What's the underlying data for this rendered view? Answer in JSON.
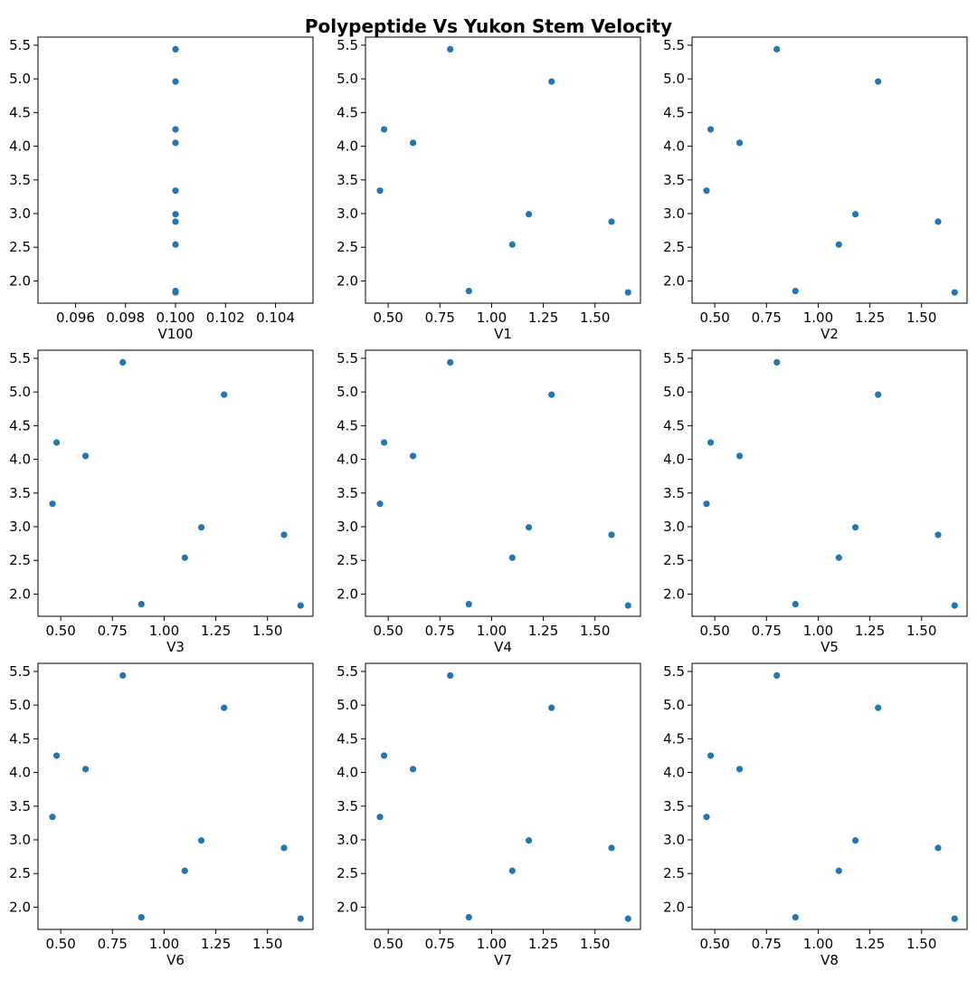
{
  "title": "Polypeptide Vs Yukon Stem Velocity",
  "colors": {
    "marker": "#1f77b4",
    "axes": "#000000",
    "background": "#ffffff"
  },
  "chart_data": [
    {
      "type": "scatter",
      "xlabel": "V100",
      "xlim": [
        0.0945,
        0.1055
      ],
      "ylim": [
        1.67,
        5.62
      ],
      "xticks": [
        0.096,
        0.098,
        0.1,
        0.102,
        0.104
      ],
      "xtick_labels": [
        "0.096",
        "0.098",
        "0.100",
        "0.102",
        "0.104"
      ],
      "yticks": [
        2.0,
        2.5,
        3.0,
        3.5,
        4.0,
        4.5,
        5.0,
        5.5
      ],
      "ytick_labels": [
        "2.0",
        "2.5",
        "3.0",
        "3.5",
        "4.0",
        "4.5",
        "5.0",
        "5.5"
      ],
      "grid": false,
      "x": [
        0.1,
        0.1,
        0.1,
        0.1,
        0.1,
        0.1,
        0.1,
        0.1,
        0.1,
        0.1
      ],
      "y": [
        5.44,
        4.96,
        4.25,
        4.05,
        3.34,
        2.99,
        2.88,
        2.54,
        1.85,
        1.83
      ]
    },
    {
      "type": "scatter",
      "xlabel": "V1",
      "xlim": [
        0.39,
        1.72
      ],
      "ylim": [
        1.67,
        5.62
      ],
      "xticks": [
        0.5,
        0.75,
        1.0,
        1.25,
        1.5
      ],
      "xtick_labels": [
        "0.50",
        "0.75",
        "1.00",
        "1.25",
        "1.50"
      ],
      "yticks": [
        2.0,
        2.5,
        3.0,
        3.5,
        4.0,
        4.5,
        5.0,
        5.5
      ],
      "ytick_labels": [
        "2.0",
        "2.5",
        "3.0",
        "3.5",
        "4.0",
        "4.5",
        "5.0",
        "5.5"
      ],
      "grid": false,
      "x": [
        0.8,
        1.29,
        0.48,
        0.62,
        0.46,
        1.18,
        1.58,
        1.1,
        0.89,
        1.66
      ],
      "y": [
        5.44,
        4.96,
        4.25,
        4.05,
        3.34,
        2.99,
        2.88,
        2.54,
        1.85,
        1.83
      ]
    },
    {
      "type": "scatter",
      "xlabel": "V2",
      "xlim": [
        0.39,
        1.72
      ],
      "ylim": [
        1.67,
        5.62
      ],
      "xticks": [
        0.5,
        0.75,
        1.0,
        1.25,
        1.5
      ],
      "xtick_labels": [
        "0.50",
        "0.75",
        "1.00",
        "1.25",
        "1.50"
      ],
      "yticks": [
        2.0,
        2.5,
        3.0,
        3.5,
        4.0,
        4.5,
        5.0,
        5.5
      ],
      "ytick_labels": [
        "2.0",
        "2.5",
        "3.0",
        "3.5",
        "4.0",
        "4.5",
        "5.0",
        "5.5"
      ],
      "grid": false,
      "x": [
        0.8,
        1.29,
        0.48,
        0.62,
        0.46,
        1.18,
        1.58,
        1.1,
        0.89,
        1.66
      ],
      "y": [
        5.44,
        4.96,
        4.25,
        4.05,
        3.34,
        2.99,
        2.88,
        2.54,
        1.85,
        1.83
      ]
    },
    {
      "type": "scatter",
      "xlabel": "V3",
      "xlim": [
        0.39,
        1.72
      ],
      "ylim": [
        1.67,
        5.62
      ],
      "xticks": [
        0.5,
        0.75,
        1.0,
        1.25,
        1.5
      ],
      "xtick_labels": [
        "0.50",
        "0.75",
        "1.00",
        "1.25",
        "1.50"
      ],
      "yticks": [
        2.0,
        2.5,
        3.0,
        3.5,
        4.0,
        4.5,
        5.0,
        5.5
      ],
      "ytick_labels": [
        "2.0",
        "2.5",
        "3.0",
        "3.5",
        "4.0",
        "4.5",
        "5.0",
        "5.5"
      ],
      "grid": false,
      "x": [
        0.8,
        1.29,
        0.48,
        0.62,
        0.46,
        1.18,
        1.58,
        1.1,
        0.89,
        1.66
      ],
      "y": [
        5.44,
        4.96,
        4.25,
        4.05,
        3.34,
        2.99,
        2.88,
        2.54,
        1.85,
        1.83
      ]
    },
    {
      "type": "scatter",
      "xlabel": "V4",
      "xlim": [
        0.39,
        1.72
      ],
      "ylim": [
        1.67,
        5.62
      ],
      "xticks": [
        0.5,
        0.75,
        1.0,
        1.25,
        1.5
      ],
      "xtick_labels": [
        "0.50",
        "0.75",
        "1.00",
        "1.25",
        "1.50"
      ],
      "yticks": [
        2.0,
        2.5,
        3.0,
        3.5,
        4.0,
        4.5,
        5.0,
        5.5
      ],
      "ytick_labels": [
        "2.0",
        "2.5",
        "3.0",
        "3.5",
        "4.0",
        "4.5",
        "5.0",
        "5.5"
      ],
      "grid": false,
      "x": [
        0.8,
        1.29,
        0.48,
        0.62,
        0.46,
        1.18,
        1.58,
        1.1,
        0.89,
        1.66
      ],
      "y": [
        5.44,
        4.96,
        4.25,
        4.05,
        3.34,
        2.99,
        2.88,
        2.54,
        1.85,
        1.83
      ]
    },
    {
      "type": "scatter",
      "xlabel": "V5",
      "xlim": [
        0.39,
        1.72
      ],
      "ylim": [
        1.67,
        5.62
      ],
      "xticks": [
        0.5,
        0.75,
        1.0,
        1.25,
        1.5
      ],
      "xtick_labels": [
        "0.50",
        "0.75",
        "1.00",
        "1.25",
        "1.50"
      ],
      "yticks": [
        2.0,
        2.5,
        3.0,
        3.5,
        4.0,
        4.5,
        5.0,
        5.5
      ],
      "ytick_labels": [
        "2.0",
        "2.5",
        "3.0",
        "3.5",
        "4.0",
        "4.5",
        "5.0",
        "5.5"
      ],
      "grid": false,
      "x": [
        0.8,
        1.29,
        0.48,
        0.62,
        0.46,
        1.18,
        1.58,
        1.1,
        0.89,
        1.66
      ],
      "y": [
        5.44,
        4.96,
        4.25,
        4.05,
        3.34,
        2.99,
        2.88,
        2.54,
        1.85,
        1.83
      ]
    },
    {
      "type": "scatter",
      "xlabel": "V6",
      "xlim": [
        0.39,
        1.72
      ],
      "ylim": [
        1.67,
        5.62
      ],
      "xticks": [
        0.5,
        0.75,
        1.0,
        1.25,
        1.5
      ],
      "xtick_labels": [
        "0.50",
        "0.75",
        "1.00",
        "1.25",
        "1.50"
      ],
      "yticks": [
        2.0,
        2.5,
        3.0,
        3.5,
        4.0,
        4.5,
        5.0,
        5.5
      ],
      "ytick_labels": [
        "2.0",
        "2.5",
        "3.0",
        "3.5",
        "4.0",
        "4.5",
        "5.0",
        "5.5"
      ],
      "grid": false,
      "x": [
        0.8,
        1.29,
        0.48,
        0.62,
        0.46,
        1.18,
        1.58,
        1.1,
        0.89,
        1.66
      ],
      "y": [
        5.44,
        4.96,
        4.25,
        4.05,
        3.34,
        2.99,
        2.88,
        2.54,
        1.85,
        1.83
      ]
    },
    {
      "type": "scatter",
      "xlabel": "V7",
      "xlim": [
        0.39,
        1.72
      ],
      "ylim": [
        1.67,
        5.62
      ],
      "xticks": [
        0.5,
        0.75,
        1.0,
        1.25,
        1.5
      ],
      "xtick_labels": [
        "0.50",
        "0.75",
        "1.00",
        "1.25",
        "1.50"
      ],
      "yticks": [
        2.0,
        2.5,
        3.0,
        3.5,
        4.0,
        4.5,
        5.0,
        5.5
      ],
      "ytick_labels": [
        "2.0",
        "2.5",
        "3.0",
        "3.5",
        "4.0",
        "4.5",
        "5.0",
        "5.5"
      ],
      "grid": false,
      "x": [
        0.8,
        1.29,
        0.48,
        0.62,
        0.46,
        1.18,
        1.58,
        1.1,
        0.89,
        1.66
      ],
      "y": [
        5.44,
        4.96,
        4.25,
        4.05,
        3.34,
        2.99,
        2.88,
        2.54,
        1.85,
        1.83
      ]
    },
    {
      "type": "scatter",
      "xlabel": "V8",
      "xlim": [
        0.39,
        1.72
      ],
      "ylim": [
        1.67,
        5.62
      ],
      "xticks": [
        0.5,
        0.75,
        1.0,
        1.25,
        1.5
      ],
      "xtick_labels": [
        "0.50",
        "0.75",
        "1.00",
        "1.25",
        "1.50"
      ],
      "yticks": [
        2.0,
        2.5,
        3.0,
        3.5,
        4.0,
        4.5,
        5.0,
        5.5
      ],
      "ytick_labels": [
        "2.0",
        "2.5",
        "3.0",
        "3.5",
        "4.0",
        "4.5",
        "5.0",
        "5.5"
      ],
      "grid": false,
      "x": [
        0.8,
        1.29,
        0.48,
        0.62,
        0.46,
        1.18,
        1.58,
        1.1,
        0.89,
        1.66
      ],
      "y": [
        5.44,
        4.96,
        4.25,
        4.05,
        3.34,
        2.99,
        2.88,
        2.54,
        1.85,
        1.83
      ]
    }
  ]
}
